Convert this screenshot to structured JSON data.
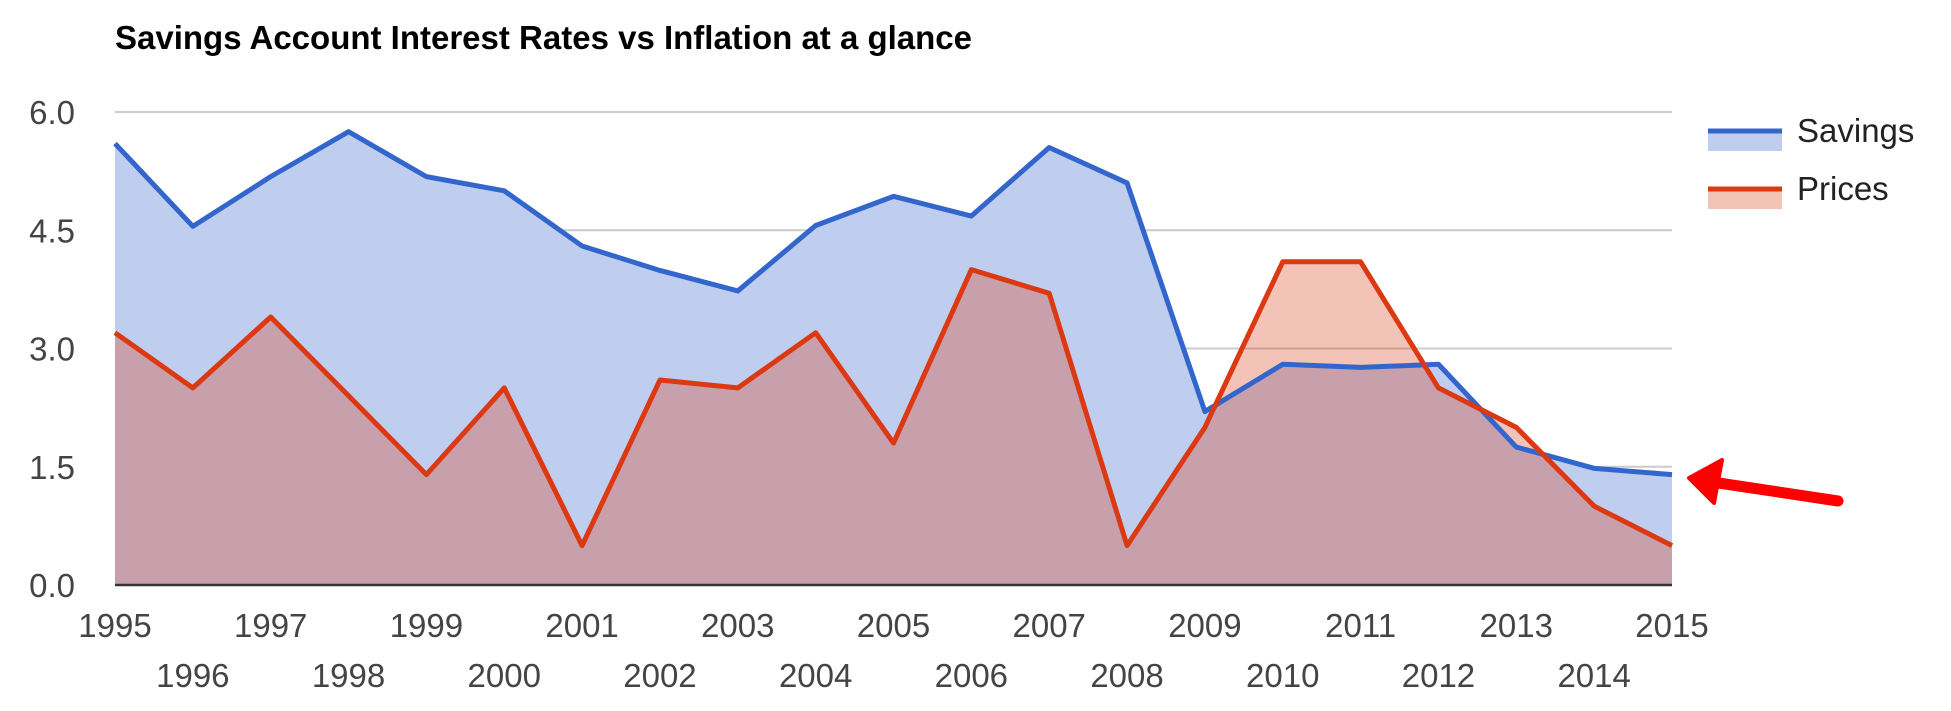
{
  "chart_data": {
    "type": "area",
    "title": "Savings Account Interest Rates vs Inflation at a glance",
    "xlabel": "",
    "ylabel": "",
    "x": [
      "1995",
      "1996",
      "1997",
      "1998",
      "1999",
      "2000",
      "2001",
      "2002",
      "2003",
      "2004",
      "2005",
      "2006",
      "2007",
      "2008",
      "2009",
      "2010",
      "2011",
      "2012",
      "2013",
      "2014",
      "2015"
    ],
    "ylim": [
      0,
      6.0
    ],
    "yticks": [
      "0.0",
      "1.5",
      "3.0",
      "4.5",
      "6.0"
    ],
    "grid": true,
    "legend_position": "right",
    "series": [
      {
        "name": "Savings",
        "color": "#3366cc",
        "fill": "#bfcdee",
        "values": [
          5.6,
          4.55,
          5.18,
          5.75,
          5.18,
          5.0,
          4.3,
          3.99,
          3.73,
          4.56,
          4.93,
          4.68,
          5.55,
          5.1,
          2.2,
          2.8,
          2.76,
          2.8,
          1.75,
          1.48,
          1.4
        ]
      },
      {
        "name": "Prices",
        "color": "#dc3912",
        "fill": "rgba(220,57,18,0.3)",
        "values": [
          3.2,
          2.5,
          3.4,
          2.4,
          1.4,
          2.5,
          0.5,
          2.6,
          2.5,
          3.2,
          1.8,
          4.0,
          3.7,
          0.5,
          2.0,
          4.1,
          4.1,
          2.5,
          2.0,
          1.0,
          0.5
        ]
      }
    ],
    "annotation": {
      "type": "arrow",
      "color": "#ff0000",
      "points_to": "Savings 2015"
    }
  }
}
